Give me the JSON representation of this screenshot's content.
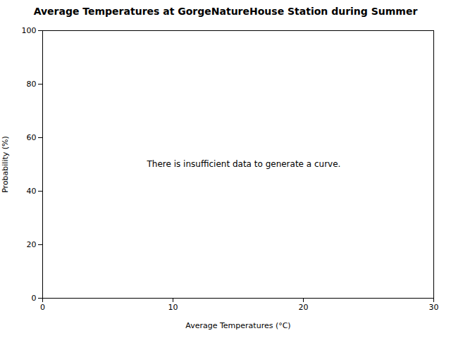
{
  "chart_data": {
    "type": "line",
    "title": "Average Temperatures at GorgeNatureHouse Station during Summer",
    "xlabel": "Average Temperatures (°C)",
    "ylabel": "Probability (%)",
    "xlim": [
      0,
      30
    ],
    "ylim": [
      0,
      100
    ],
    "xticks": [
      0,
      10,
      20,
      30
    ],
    "yticks": [
      0,
      20,
      40,
      60,
      80,
      100
    ],
    "grid": false,
    "annotations": [
      {
        "text": "There is insufficient data to generate a curve.",
        "x": 8,
        "y": 50
      }
    ]
  }
}
